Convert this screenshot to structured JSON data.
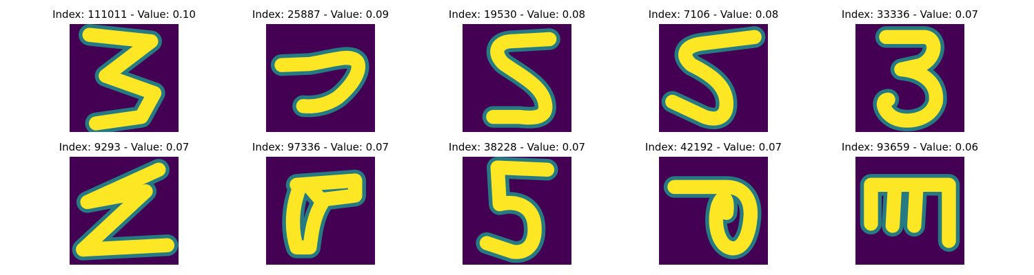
{
  "panels": [
    {
      "title": "Index: 111011 - Value: 0.10",
      "index": 111011,
      "value": 0.1,
      "glyph": "3"
    },
    {
      "title": "Index: 25887 - Value: 0.09",
      "index": 25887,
      "value": 0.09,
      "glyph": "7"
    },
    {
      "title": "Index: 19530 - Value: 0.08",
      "index": 19530,
      "value": 0.08,
      "glyph": "5"
    },
    {
      "title": "Index: 7106 - Value: 0.08",
      "index": 7106,
      "value": 0.08,
      "glyph": "5"
    },
    {
      "title": "Index: 33336 - Value: 0.07",
      "index": 33336,
      "value": 0.07,
      "glyph": "3"
    },
    {
      "title": "Index: 9293 - Value: 0.07",
      "index": 9293,
      "value": 0.07,
      "glyph": "z"
    },
    {
      "title": "Index: 97336 - Value: 0.07",
      "index": 97336,
      "value": 0.07,
      "glyph": "F"
    },
    {
      "title": "Index: 38228 - Value: 0.07",
      "index": 38228,
      "value": 0.07,
      "glyph": "5"
    },
    {
      "title": "Index: 42192 - Value: 0.07",
      "index": 42192,
      "value": 0.07,
      "glyph": "loop-seven"
    },
    {
      "title": "Index: 93659 - Value: 0.06",
      "index": 93659,
      "value": 0.06,
      "glyph": "m"
    }
  ],
  "colors": {
    "background": "#440154",
    "stroke_core": "#fde725",
    "stroke_edge": "#21918c"
  }
}
